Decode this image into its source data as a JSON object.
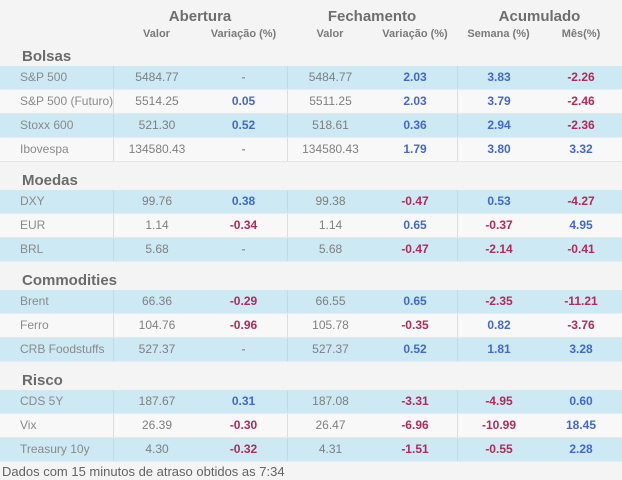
{
  "header": {
    "groups": [
      {
        "label": "Abertura",
        "sub": [
          "Valor",
          "Variação (%)"
        ]
      },
      {
        "label": "Fechamento",
        "sub": [
          "Valor",
          "Variação (%)"
        ]
      },
      {
        "label": "Acumulado",
        "sub": [
          "Semana (%)",
          "Mês(%)"
        ]
      }
    ]
  },
  "sections": [
    {
      "title": "Bolsas",
      "rows": [
        {
          "label": "S&P 500",
          "values": [
            "5484.77",
            "-",
            "5484.77",
            "2.03",
            "3.83",
            "-2.26"
          ],
          "styles": [
            "g",
            "n",
            "g",
            "b",
            "b",
            "r"
          ]
        },
        {
          "label": "S&P 500 (Futuro)",
          "values": [
            "5514.25",
            "0.05",
            "5511.25",
            "2.03",
            "3.79",
            "-2.46"
          ],
          "styles": [
            "g",
            "b",
            "g",
            "b",
            "b",
            "r"
          ]
        },
        {
          "label": "Stoxx 600",
          "values": [
            "521.30",
            "0.52",
            "518.61",
            "0.36",
            "2.94",
            "-2.36"
          ],
          "styles": [
            "g",
            "b",
            "g",
            "b",
            "b",
            "r"
          ]
        },
        {
          "label": "Ibovespa",
          "values": [
            "134580.43",
            "-",
            "134580.43",
            "1.79",
            "3.80",
            "3.32"
          ],
          "styles": [
            "g",
            "n",
            "g",
            "b",
            "b",
            "b"
          ]
        }
      ]
    },
    {
      "title": "Moedas",
      "rows": [
        {
          "label": "DXY",
          "values": [
            "99.76",
            "0.38",
            "99.38",
            "-0.47",
            "0.53",
            "-4.27"
          ],
          "styles": [
            "g",
            "b",
            "g",
            "r",
            "b",
            "r"
          ]
        },
        {
          "label": "EUR",
          "values": [
            "1.14",
            "-0.34",
            "1.14",
            "0.65",
            "-0.37",
            "4.95"
          ],
          "styles": [
            "g",
            "r",
            "g",
            "b",
            "r",
            "b"
          ]
        },
        {
          "label": "BRL",
          "values": [
            "5.68",
            "-",
            "5.68",
            "-0.47",
            "-2.14",
            "-0.41"
          ],
          "styles": [
            "g",
            "n",
            "g",
            "r",
            "r",
            "r"
          ]
        }
      ]
    },
    {
      "title": "Commodities",
      "rows": [
        {
          "label": "Brent",
          "values": [
            "66.36",
            "-0.29",
            "66.55",
            "0.65",
            "-2.35",
            "-11.21"
          ],
          "styles": [
            "g",
            "r",
            "g",
            "b",
            "r",
            "r"
          ]
        },
        {
          "label": "Ferro",
          "values": [
            "104.76",
            "-0.96",
            "105.78",
            "-0.35",
            "0.82",
            "-3.76"
          ],
          "styles": [
            "g",
            "r",
            "g",
            "r",
            "b",
            "r"
          ]
        },
        {
          "label": "CRB Foodstuffs",
          "values": [
            "527.37",
            "-",
            "527.37",
            "0.52",
            "1.81",
            "3.28"
          ],
          "styles": [
            "g",
            "n",
            "g",
            "b",
            "b",
            "b"
          ]
        }
      ]
    },
    {
      "title": "Risco",
      "rows": [
        {
          "label": "CDS 5Y",
          "values": [
            "187.67",
            "0.31",
            "187.08",
            "-3.31",
            "-4.95",
            "0.60"
          ],
          "styles": [
            "g",
            "b",
            "g",
            "r",
            "r",
            "b"
          ]
        },
        {
          "label": "Vix",
          "values": [
            "26.39",
            "-0.30",
            "26.47",
            "-6.96",
            "-10.99",
            "18.45"
          ],
          "styles": [
            "g",
            "r",
            "g",
            "r",
            "r",
            "b"
          ]
        },
        {
          "label": "Treasury 10y",
          "values": [
            "4.30",
            "-0.32",
            "4.31",
            "-1.51",
            "-0.55",
            "2.28"
          ],
          "styles": [
            "g",
            "r",
            "g",
            "r",
            "r",
            "b"
          ]
        }
      ]
    }
  ],
  "footer": {
    "text": "Dados com 15 minutos de atraso obtidos as 7:34"
  },
  "colors": {
    "positive": "#4169cd",
    "negative": "#b02a5a",
    "neutral_value": "#7f7f7f",
    "row_highlight": "#cce9f4",
    "row_plain": "#f8f8f8",
    "background": "#f4f4f4"
  }
}
